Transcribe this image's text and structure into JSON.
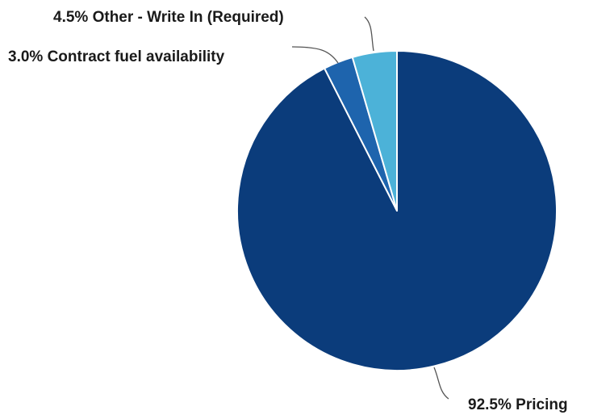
{
  "chart_data": {
    "type": "pie",
    "title": "",
    "slices": [
      {
        "label": "Pricing",
        "value": 92.5,
        "display": "92.5% Pricing",
        "color": "#0b3c7b"
      },
      {
        "label": "Contract fuel availability",
        "value": 3.0,
        "display": "3.0% Contract fuel availability",
        "color": "#1e64ad"
      },
      {
        "label": "Other - Write In (Required)",
        "value": 4.5,
        "display": "4.5% Other - Write In (Required)",
        "color": "#4cb2d8"
      }
    ],
    "start_angle": "top (12 o'clock)",
    "direction": "clockwise",
    "legend": "none"
  }
}
